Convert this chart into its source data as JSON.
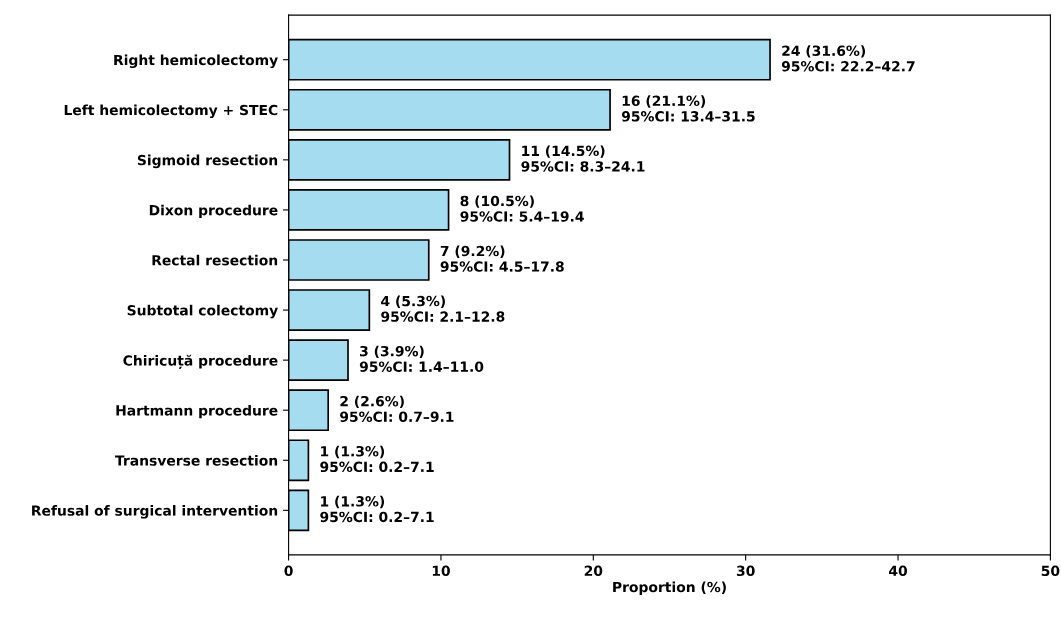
{
  "chart_data": {
    "type": "bar",
    "orientation": "horizontal",
    "xlabel": "Proportion (%)",
    "categories": [
      "Right hemicolectomy",
      "Left hemicolectomy + STEC",
      "Sigmoid resection",
      "Dixon procedure",
      "Rectal resection",
      "Subtotal colectomy",
      "Chiricuță procedure",
      "Hartmann procedure",
      "Transverse resection",
      "Refusal of surgical intervention"
    ],
    "values": [
      31.6,
      21.1,
      14.5,
      10.5,
      9.2,
      5.3,
      3.9,
      2.6,
      1.3,
      1.3
    ],
    "value_labels": [
      "24 (31.6%)\n95%CI: 22.2–42.7",
      "16 (21.1%)\n95%CI: 13.4–31.5",
      "11 (14.5%)\n95%CI: 8.3–24.1",
      "8 (10.5%)\n95%CI: 5.4–19.4",
      "7 (9.2%)\n95%CI: 4.5–17.8",
      "4 (5.3%)\n95%CI: 2.1–12.8",
      "3 (3.9%)\n95%CI: 1.4–11.0",
      "2 (2.6%)\n95%CI: 0.7–9.1",
      "1 (1.3%)\n95%CI: 0.2–7.1",
      "1 (1.3%)\n95%CI: 0.2–7.1"
    ],
    "color": "#a6dcef",
    "xlim": [
      0,
      50
    ],
    "xticks": [
      0,
      10,
      20,
      30,
      40,
      50
    ],
    "grid": false
  }
}
